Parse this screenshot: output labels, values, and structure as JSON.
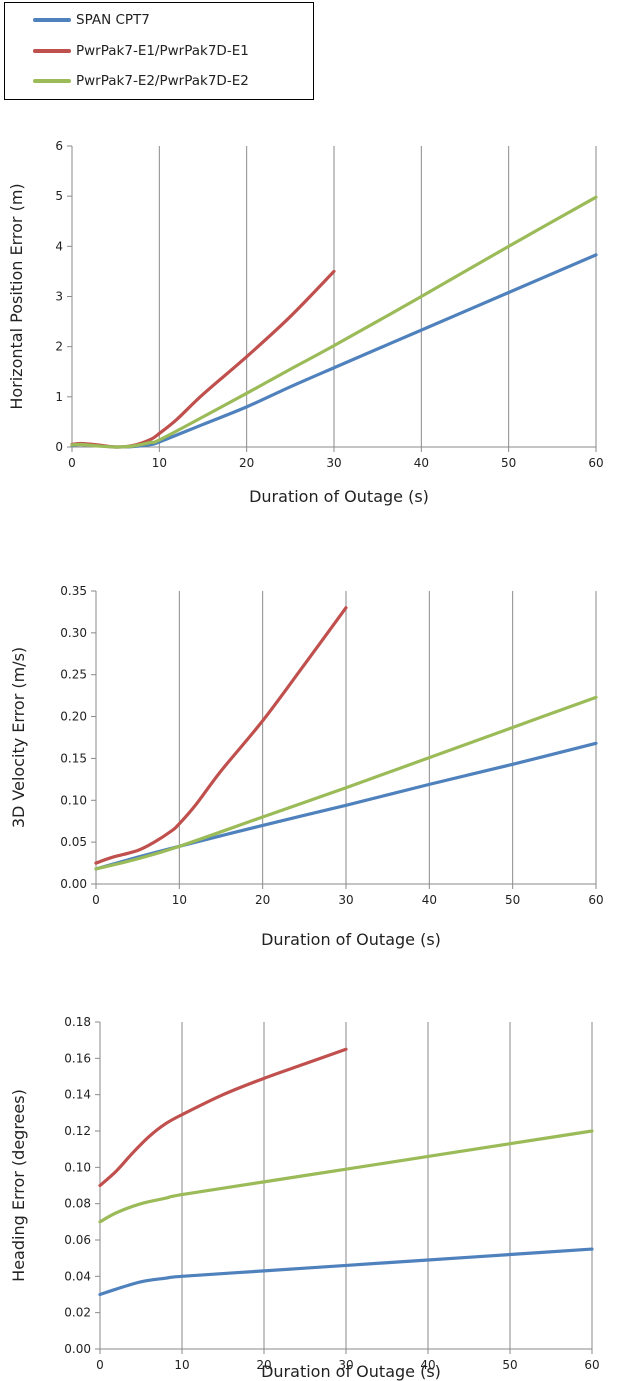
{
  "legend": {
    "items": [
      {
        "label": "SPAN CPT7",
        "color": "#4f81bd"
      },
      {
        "label": "PwrPak7-E1/PwrPak7D-E1",
        "color": "#c0504d"
      },
      {
        "label": "PwrPak7-E2/PwrPak7D-E2",
        "color": "#9bbb59"
      }
    ]
  },
  "chart_data": [
    {
      "type": "line",
      "title": "",
      "xlabel": "Duration of Outage (s)",
      "ylabel": "Horizontal Position Error (m)",
      "xlim": [
        0,
        60
      ],
      "ylim": [
        0,
        6
      ],
      "xticks": [
        0,
        10,
        20,
        30,
        40,
        50,
        60
      ],
      "yticks": [
        0,
        1,
        2,
        3,
        4,
        5,
        6
      ],
      "ytick_labels": [
        "0",
        "1",
        "2",
        "3",
        "4",
        "5",
        "6"
      ],
      "grid": "vertical",
      "series": [
        {
          "name": "SPAN CPT7",
          "color": "#4f81bd",
          "x": [
            0,
            1,
            3,
            5,
            7,
            9,
            10,
            15,
            20,
            25,
            30,
            40,
            50,
            60
          ],
          "y": [
            0.03,
            0.05,
            0.03,
            0.0,
            0.01,
            0.05,
            0.1,
            0.45,
            0.8,
            1.2,
            1.58,
            2.33,
            3.08,
            3.83
          ]
        },
        {
          "name": "PwrPak7-E1/PwrPak7D-E1",
          "color": "#c0504d",
          "x": [
            0,
            1,
            3,
            5,
            7,
            9,
            10,
            12,
            15,
            20,
            25,
            30
          ],
          "y": [
            0.05,
            0.07,
            0.04,
            0.0,
            0.03,
            0.15,
            0.27,
            0.55,
            1.05,
            1.8,
            2.6,
            3.5
          ]
        },
        {
          "name": "PwrPak7-E2/PwrPak7D-E2",
          "color": "#9bbb59",
          "x": [
            0,
            1,
            3,
            5,
            7,
            9,
            10,
            15,
            20,
            25,
            30,
            40,
            50,
            60
          ],
          "y": [
            0.04,
            0.05,
            0.02,
            0.0,
            0.02,
            0.09,
            0.14,
            0.6,
            1.07,
            1.55,
            2.02,
            3.0,
            4.0,
            4.98
          ]
        }
      ]
    },
    {
      "type": "line",
      "title": "",
      "xlabel": "Duration of Outage (s)",
      "ylabel": "3D Velocity Error (m/s)",
      "xlim": [
        0,
        60
      ],
      "ylim": [
        0,
        0.35
      ],
      "xticks": [
        0,
        10,
        20,
        30,
        40,
        50,
        60
      ],
      "yticks": [
        0,
        0.05,
        0.1,
        0.15,
        0.2,
        0.25,
        0.3,
        0.35
      ],
      "ytick_labels": [
        "0.00",
        "0.05",
        "0.10",
        "0.15",
        "0.20",
        "0.25",
        "0.30",
        "0.35"
      ],
      "grid": "vertical",
      "series": [
        {
          "name": "SPAN CPT7",
          "color": "#4f81bd",
          "x": [
            0,
            5,
            10,
            20,
            30,
            40,
            50,
            60
          ],
          "y": [
            0.018,
            0.032,
            0.045,
            0.07,
            0.094,
            0.119,
            0.143,
            0.168
          ]
        },
        {
          "name": "PwrPak7-E1/PwrPak7D-E1",
          "color": "#c0504d",
          "x": [
            0,
            2,
            5,
            7,
            9,
            10,
            12,
            15,
            20,
            25,
            30
          ],
          "y": [
            0.025,
            0.032,
            0.04,
            0.05,
            0.063,
            0.072,
            0.095,
            0.135,
            0.195,
            0.262,
            0.33
          ]
        },
        {
          "name": "PwrPak7-E2/PwrPak7D-E2",
          "color": "#9bbb59",
          "x": [
            0,
            5,
            10,
            20,
            30,
            40,
            50,
            60
          ],
          "y": [
            0.018,
            0.03,
            0.045,
            0.08,
            0.115,
            0.151,
            0.187,
            0.223
          ]
        }
      ]
    },
    {
      "type": "line",
      "title": "",
      "xlabel": "Duration of Outage (s)",
      "ylabel": "Heading Error (degrees)",
      "xlim": [
        0,
        60
      ],
      "ylim": [
        0,
        0.18
      ],
      "xticks": [
        0,
        10,
        20,
        30,
        40,
        50,
        60
      ],
      "yticks": [
        0,
        0.02,
        0.04,
        0.06,
        0.08,
        0.1,
        0.12,
        0.14,
        0.16,
        0.18
      ],
      "ytick_labels": [
        "0.00",
        "0.02",
        "0.04",
        "0.06",
        "0.08",
        "0.10",
        "0.12",
        "0.14",
        "0.16",
        "0.18"
      ],
      "grid": "vertical",
      "series": [
        {
          "name": "SPAN CPT7",
          "color": "#4f81bd",
          "x": [
            0,
            2,
            5,
            8,
            10,
            20,
            30,
            40,
            50,
            60
          ],
          "y": [
            0.03,
            0.033,
            0.037,
            0.039,
            0.04,
            0.043,
            0.046,
            0.049,
            0.052,
            0.055
          ]
        },
        {
          "name": "PwrPak7-E1/PwrPak7D-E1",
          "color": "#c0504d",
          "x": [
            0,
            2,
            4,
            6,
            8,
            10,
            15,
            20,
            25,
            30
          ],
          "y": [
            0.09,
            0.098,
            0.108,
            0.117,
            0.124,
            0.129,
            0.14,
            0.149,
            0.157,
            0.165
          ]
        },
        {
          "name": "PwrPak7-E2/PwrPak7D-E2",
          "color": "#9bbb59",
          "x": [
            0,
            2,
            5,
            8,
            10,
            20,
            30,
            40,
            50,
            60
          ],
          "y": [
            0.07,
            0.075,
            0.08,
            0.083,
            0.085,
            0.092,
            0.099,
            0.106,
            0.113,
            0.12
          ]
        }
      ]
    }
  ]
}
